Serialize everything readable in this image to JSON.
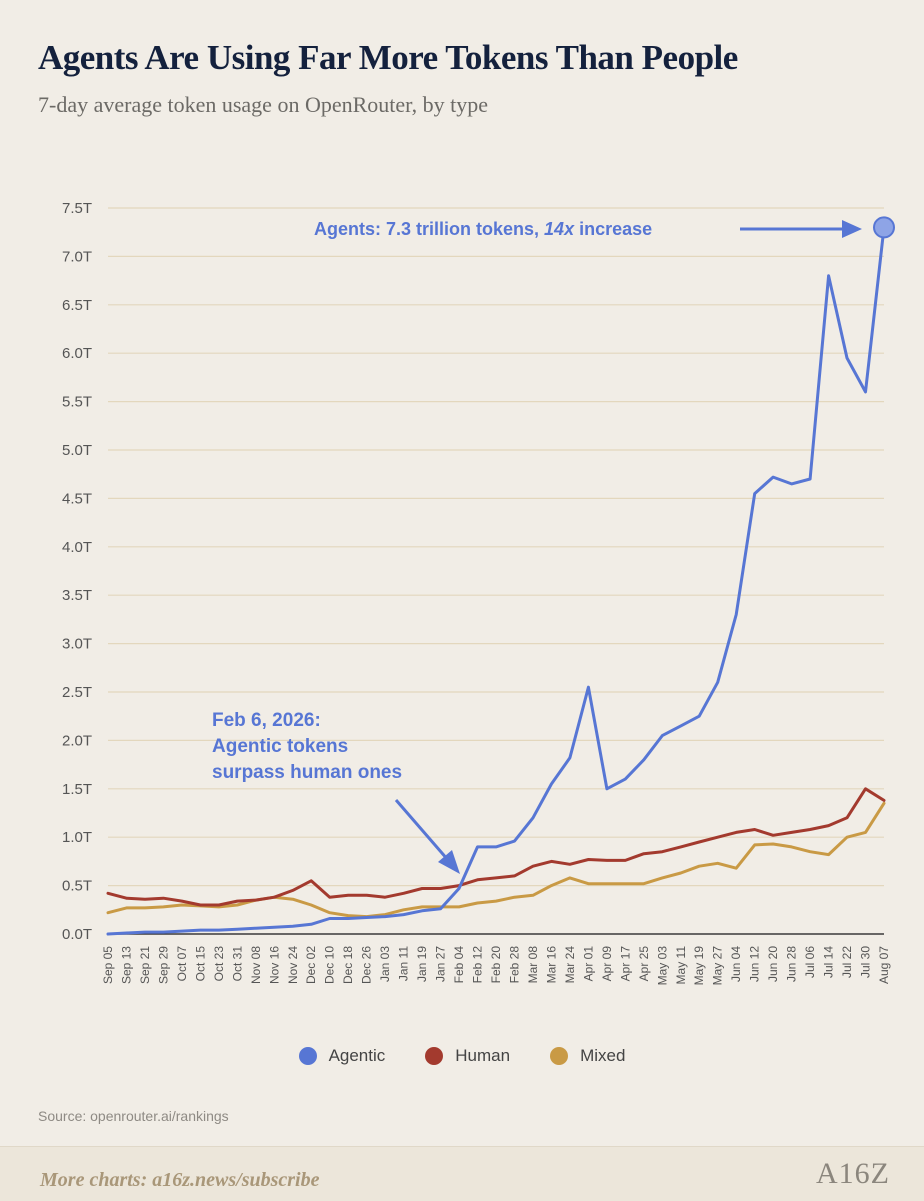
{
  "title": "Agents Are Using Far More Tokens Than People",
  "subtitle": "7-day average token usage on OpenRouter, by type",
  "chart_data": {
    "type": "line",
    "title": "Agents Are Using Far More Tokens Than People",
    "subtitle": "7-day average token usage on OpenRouter, by type",
    "xlabel": "",
    "ylabel": "",
    "ylim": [
      0,
      7.5
    ],
    "y_ticks": [
      "0.0T",
      "0.5T",
      "1.0T",
      "1.5T",
      "2.0T",
      "2.5T",
      "3.0T",
      "3.5T",
      "4.0T",
      "4.5T",
      "5.0T",
      "5.5T",
      "6.0T",
      "6.5T",
      "7.0T",
      "7.5T"
    ],
    "grid": "horizontal",
    "legend_position": "bottom",
    "categories": [
      "Sep 05",
      "Sep 13",
      "Sep 21",
      "Sep 29",
      "Oct 07",
      "Oct 15",
      "Oct 23",
      "Oct 31",
      "Nov 08",
      "Nov 16",
      "Nov 24",
      "Dec 02",
      "Dec 10",
      "Dec 18",
      "Dec 26",
      "Jan 03",
      "Jan 11",
      "Jan 19",
      "Jan 27",
      "Feb 04",
      "Feb 12",
      "Feb 20",
      "Feb 28",
      "Mar 08",
      "Mar 16",
      "Mar 24",
      "Apr 01",
      "Apr 09",
      "Apr 17",
      "Apr 25",
      "May 03",
      "May 11",
      "May 19",
      "May 27",
      "Jun 04",
      "Jun 12",
      "Jun 20",
      "Jun 28",
      "Jul 06",
      "Jul 14",
      "Jul 22",
      "Jul 30",
      "Aug 07"
    ],
    "series": [
      {
        "name": "Agentic",
        "color": "#5776d4",
        "values": [
          0.0,
          0.01,
          0.02,
          0.02,
          0.03,
          0.04,
          0.04,
          0.05,
          0.06,
          0.07,
          0.08,
          0.1,
          0.16,
          0.16,
          0.17,
          0.18,
          0.2,
          0.24,
          0.26,
          0.47,
          0.9,
          0.9,
          0.96,
          1.2,
          1.55,
          1.82,
          2.55,
          1.5,
          1.6,
          1.8,
          2.05,
          2.15,
          2.25,
          2.6,
          3.3,
          4.55,
          4.72,
          4.65,
          4.7,
          6.8,
          5.95,
          5.6,
          7.3
        ]
      },
      {
        "name": "Human",
        "color": "#a33a2e",
        "values": [
          0.42,
          0.37,
          0.36,
          0.37,
          0.34,
          0.3,
          0.3,
          0.34,
          0.35,
          0.38,
          0.45,
          0.55,
          0.38,
          0.4,
          0.4,
          0.38,
          0.42,
          0.47,
          0.47,
          0.5,
          0.56,
          0.58,
          0.6,
          0.7,
          0.75,
          0.72,
          0.77,
          0.76,
          0.76,
          0.83,
          0.85,
          0.9,
          0.95,
          1.0,
          1.05,
          1.08,
          1.02,
          1.05,
          1.08,
          1.12,
          1.2,
          1.5,
          1.38
        ]
      },
      {
        "name": "Mixed",
        "color": "#c99a45",
        "values": [
          0.22,
          0.27,
          0.27,
          0.28,
          0.3,
          0.29,
          0.28,
          0.3,
          0.35,
          0.38,
          0.36,
          0.3,
          0.22,
          0.19,
          0.18,
          0.2,
          0.25,
          0.28,
          0.28,
          0.28,
          0.32,
          0.34,
          0.38,
          0.4,
          0.5,
          0.58,
          0.52,
          0.52,
          0.52,
          0.52,
          0.58,
          0.63,
          0.7,
          0.73,
          0.68,
          0.92,
          0.93,
          0.9,
          0.85,
          0.82,
          1.0,
          1.05,
          1.35
        ]
      }
    ],
    "annotations": [
      {
        "text": "Agents: 7.3 trillion tokens, 14x increase",
        "x": "Aug 07",
        "y": 7.3
      },
      {
        "text": "Feb 6, 2026: Agentic tokens surpass human ones",
        "x": "Feb 04",
        "y": 0.47
      }
    ]
  },
  "annotation_top": {
    "part1": "Agents: 7.3 trillion tokens, ",
    "part2": "14x",
    "part3": " increase"
  },
  "annotation_mid": {
    "line1": "Feb 6, 2026:",
    "line2": "Agentic tokens",
    "line3": "surpass human ones"
  },
  "legend": [
    {
      "label": "Agentic",
      "color": "#5776d4"
    },
    {
      "label": "Human",
      "color": "#a33a2e"
    },
    {
      "label": "Mixed",
      "color": "#c99a45"
    }
  ],
  "source": "Source: openrouter.ai/rankings",
  "footer": {
    "text": "More charts: a16z.news/subscribe",
    "logo": "A16Z"
  }
}
